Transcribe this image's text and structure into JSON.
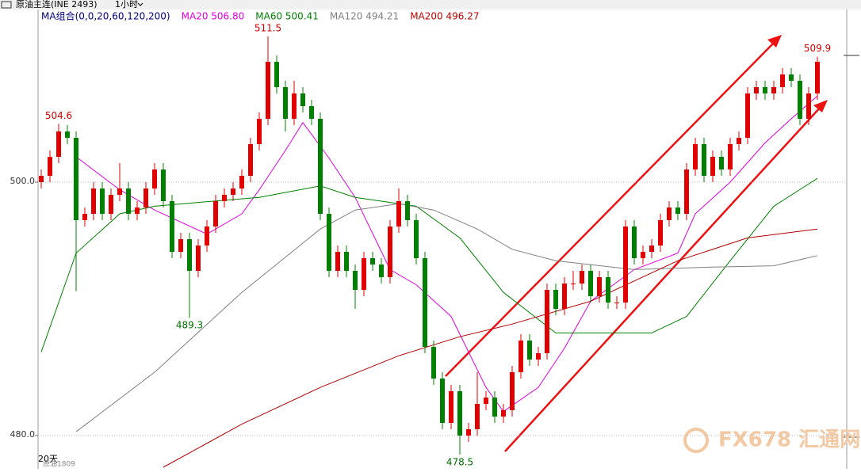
{
  "chart_data": {
    "type": "candlestick",
    "title": "原油主连(INE 2493)",
    "period": "1小时",
    "ma_legend": [
      {
        "text": "MA组合(0,0,20,60,120,200)",
        "color": "#000080"
      },
      {
        "text": "MA20 506.80",
        "color": "#e000e0"
      },
      {
        "text": "MA60 500.41",
        "color": "#008000"
      },
      {
        "text": "MA120 494.21",
        "color": "#808080"
      },
      {
        "text": "MA200 496.27",
        "color": "#c00000"
      }
    ],
    "ylim": [
      477.375,
      514.375
    ],
    "yticks": [
      {
        "value": 480,
        "label": "480.0"
      },
      {
        "value": 500,
        "label": "500.0"
      }
    ],
    "up_color": "#e00000",
    "down_color": "#008000",
    "ohlc": [
      [
        500,
        501,
        499.5,
        500.5
      ],
      [
        500.5,
        502.5,
        500,
        502
      ],
      [
        502,
        504.6,
        501.5,
        504
      ],
      [
        504,
        504.5,
        503,
        503.5
      ],
      [
        503.5,
        504,
        491.4,
        497
      ],
      [
        497,
        498,
        496.5,
        497.5
      ],
      [
        497.5,
        500,
        497,
        499.5
      ],
      [
        499.5,
        500,
        497,
        497.5
      ],
      [
        497.5,
        499.5,
        497,
        499
      ],
      [
        499,
        501.5,
        498.5,
        499.5
      ],
      [
        499.5,
        500,
        497,
        497.5
      ],
      [
        497.5,
        498.5,
        497,
        498
      ],
      [
        498,
        500,
        497.5,
        499.5
      ],
      [
        499.5,
        501.5,
        499,
        501
      ],
      [
        501,
        501.5,
        498,
        498.5
      ],
      [
        498.5,
        499,
        494,
        494.5
      ],
      [
        494.5,
        496,
        494,
        495.5
      ],
      [
        495.5,
        496,
        489.3,
        493
      ],
      [
        493,
        495.5,
        492.5,
        495
      ],
      [
        495,
        497,
        494.5,
        496.5
      ],
      [
        496.5,
        499,
        496,
        498.5
      ],
      [
        498.5,
        499.5,
        498,
        499
      ],
      [
        499,
        500,
        498.5,
        499.5
      ],
      [
        499.5,
        501,
        499,
        500.5
      ],
      [
        500.5,
        503.5,
        500,
        503
      ],
      [
        503,
        505.5,
        502.5,
        505
      ],
      [
        505,
        511.5,
        504.5,
        509.5
      ],
      [
        509.5,
        510,
        507,
        507.5
      ],
      [
        507.5,
        508,
        504,
        505
      ],
      [
        505,
        508,
        504.5,
        507
      ],
      [
        507,
        507.5,
        505.5,
        506
      ],
      [
        506,
        506.5,
        504.5,
        505
      ],
      [
        505,
        505.5,
        497,
        497.5
      ],
      [
        497.5,
        498,
        492.5,
        493
      ],
      [
        493,
        495,
        492.5,
        494.5
      ],
      [
        494.5,
        495,
        492.5,
        493
      ],
      [
        493,
        493.5,
        490,
        491.5
      ],
      [
        491.5,
        494.5,
        491,
        494
      ],
      [
        494,
        494.5,
        493,
        493.5
      ],
      [
        493.5,
        494,
        492,
        492.5
      ],
      [
        492.5,
        497,
        492,
        496.5
      ],
      [
        496.5,
        499.5,
        496,
        498.5
      ],
      [
        498.5,
        499,
        496.5,
        497
      ],
      [
        497,
        497.5,
        493.5,
        494
      ],
      [
        494,
        494.5,
        486.5,
        487
      ],
      [
        487,
        487.5,
        484,
        484.5
      ],
      [
        484.5,
        485,
        480.5,
        481
      ],
      [
        481,
        484,
        480.5,
        483.5
      ],
      [
        483.5,
        484,
        478.5,
        480
      ],
      [
        480,
        481,
        479.5,
        480.5
      ],
      [
        480.5,
        485,
        480,
        482.5
      ],
      [
        482.5,
        483.5,
        482,
        483
      ],
      [
        483,
        483.5,
        481,
        481.5
      ],
      [
        481.5,
        482.5,
        481,
        482
      ],
      [
        482,
        485.5,
        481.5,
        485
      ],
      [
        485,
        488,
        484.5,
        487.5
      ],
      [
        487.5,
        488,
        485.5,
        486
      ],
      [
        486,
        487,
        485.5,
        486.5
      ],
      [
        486.5,
        492,
        486,
        491.5
      ],
      [
        491.5,
        492,
        489.5,
        490
      ],
      [
        490,
        492.5,
        489.5,
        492
      ],
      [
        492,
        493,
        491.5,
        492
      ],
      [
        492,
        493.5,
        491.5,
        493
      ],
      [
        493,
        493.5,
        490.5,
        491
      ],
      [
        491,
        493,
        490.5,
        492.5
      ],
      [
        492.5,
        493,
        490,
        490.5
      ],
      [
        490.5,
        491,
        490,
        490.5
      ],
      [
        490.5,
        497,
        490,
        496.5
      ],
      [
        496.5,
        497,
        493.5,
        494
      ],
      [
        494,
        495,
        493.5,
        494.5
      ],
      [
        494.5,
        495.5,
        494,
        495
      ],
      [
        495,
        497.5,
        494.5,
        497
      ],
      [
        497,
        498.5,
        496.5,
        498
      ],
      [
        498,
        498.5,
        497,
        497.5
      ],
      [
        497.5,
        501.5,
        497,
        501
      ],
      [
        501,
        503.5,
        500.5,
        503
      ],
      [
        503,
        503.5,
        500,
        500.5
      ],
      [
        500.5,
        502.5,
        500,
        502
      ],
      [
        502,
        502.5,
        500.5,
        501
      ],
      [
        501,
        503.5,
        500.5,
        503
      ],
      [
        503,
        504,
        502.5,
        503.5
      ],
      [
        503.5,
        507.5,
        503,
        507
      ],
      [
        507,
        508,
        506.5,
        507.5
      ],
      [
        507.5,
        508,
        506.5,
        507
      ],
      [
        507,
        508,
        506.5,
        507.5
      ],
      [
        507.5,
        509,
        507,
        508.5
      ],
      [
        508.5,
        509,
        507.5,
        508
      ],
      [
        508,
        508.5,
        504.5,
        505
      ],
      [
        505,
        507.5,
        504.5,
        507
      ],
      [
        507,
        509.9,
        506.5,
        509.5
      ]
    ],
    "ma_lines": [
      {
        "color": "#e000e0",
        "x": [
          4,
          9,
          13,
          19,
          23,
          25,
          28,
          30,
          33,
          36,
          40,
          43,
          47,
          51,
          53,
          57,
          60,
          63,
          68,
          73,
          75,
          79,
          83,
          86,
          89
        ],
        "values": [
          502,
          499.4,
          497.8,
          495.9,
          497.5,
          499.4,
          502.5,
          504.7,
          501.9,
          498.8,
          493.1,
          491.9,
          489.4,
          483.8,
          481.9,
          483.8,
          486.9,
          490.6,
          493.1,
          494.4,
          497.5,
          500,
          503.1,
          505,
          506.8
        ]
      },
      {
        "color": "#008000",
        "x": [
          0,
          4,
          9,
          13,
          18,
          25,
          32,
          36,
          43,
          48,
          53,
          59,
          64,
          70,
          74,
          79,
          84,
          89
        ],
        "values": [
          486.6,
          494.4,
          497.5,
          498.1,
          498.4,
          498.8,
          499.7,
          498.8,
          498.1,
          495.6,
          491.3,
          488.1,
          488.1,
          488.1,
          489.4,
          493.8,
          498.1,
          500.3
        ]
      },
      {
        "color": "#808080",
        "x": [
          4,
          13,
          23,
          32,
          36,
          41,
          45,
          50,
          54,
          59,
          68,
          77,
          84,
          89
        ],
        "values": [
          480.3,
          485,
          491.3,
          496.3,
          497.8,
          498.3,
          497.8,
          496.3,
          494.7,
          493.8,
          493.1,
          493.3,
          493.4,
          494.2
        ]
      },
      {
        "color": "#b00000",
        "x": [
          14,
          23,
          32,
          41,
          48,
          54,
          63,
          73,
          81,
          89
        ],
        "values": [
          477.5,
          480.9,
          483.8,
          486.3,
          487.8,
          488.8,
          490.6,
          493.8,
          495.6,
          496.3
        ]
      }
    ],
    "annotations": [
      {
        "text": "504.6",
        "index": 2,
        "at": "high"
      },
      {
        "text": "511.5",
        "index": 26,
        "at": "high"
      },
      {
        "text": "489.3",
        "index": 17,
        "at": "low"
      },
      {
        "text": "478.5",
        "index": 48,
        "at": "low"
      },
      {
        "text": "509.9",
        "index": 89,
        "at": "high"
      }
    ],
    "footer": "20天",
    "contract": "原油1809",
    "watermark": "FX678 汇通网"
  }
}
